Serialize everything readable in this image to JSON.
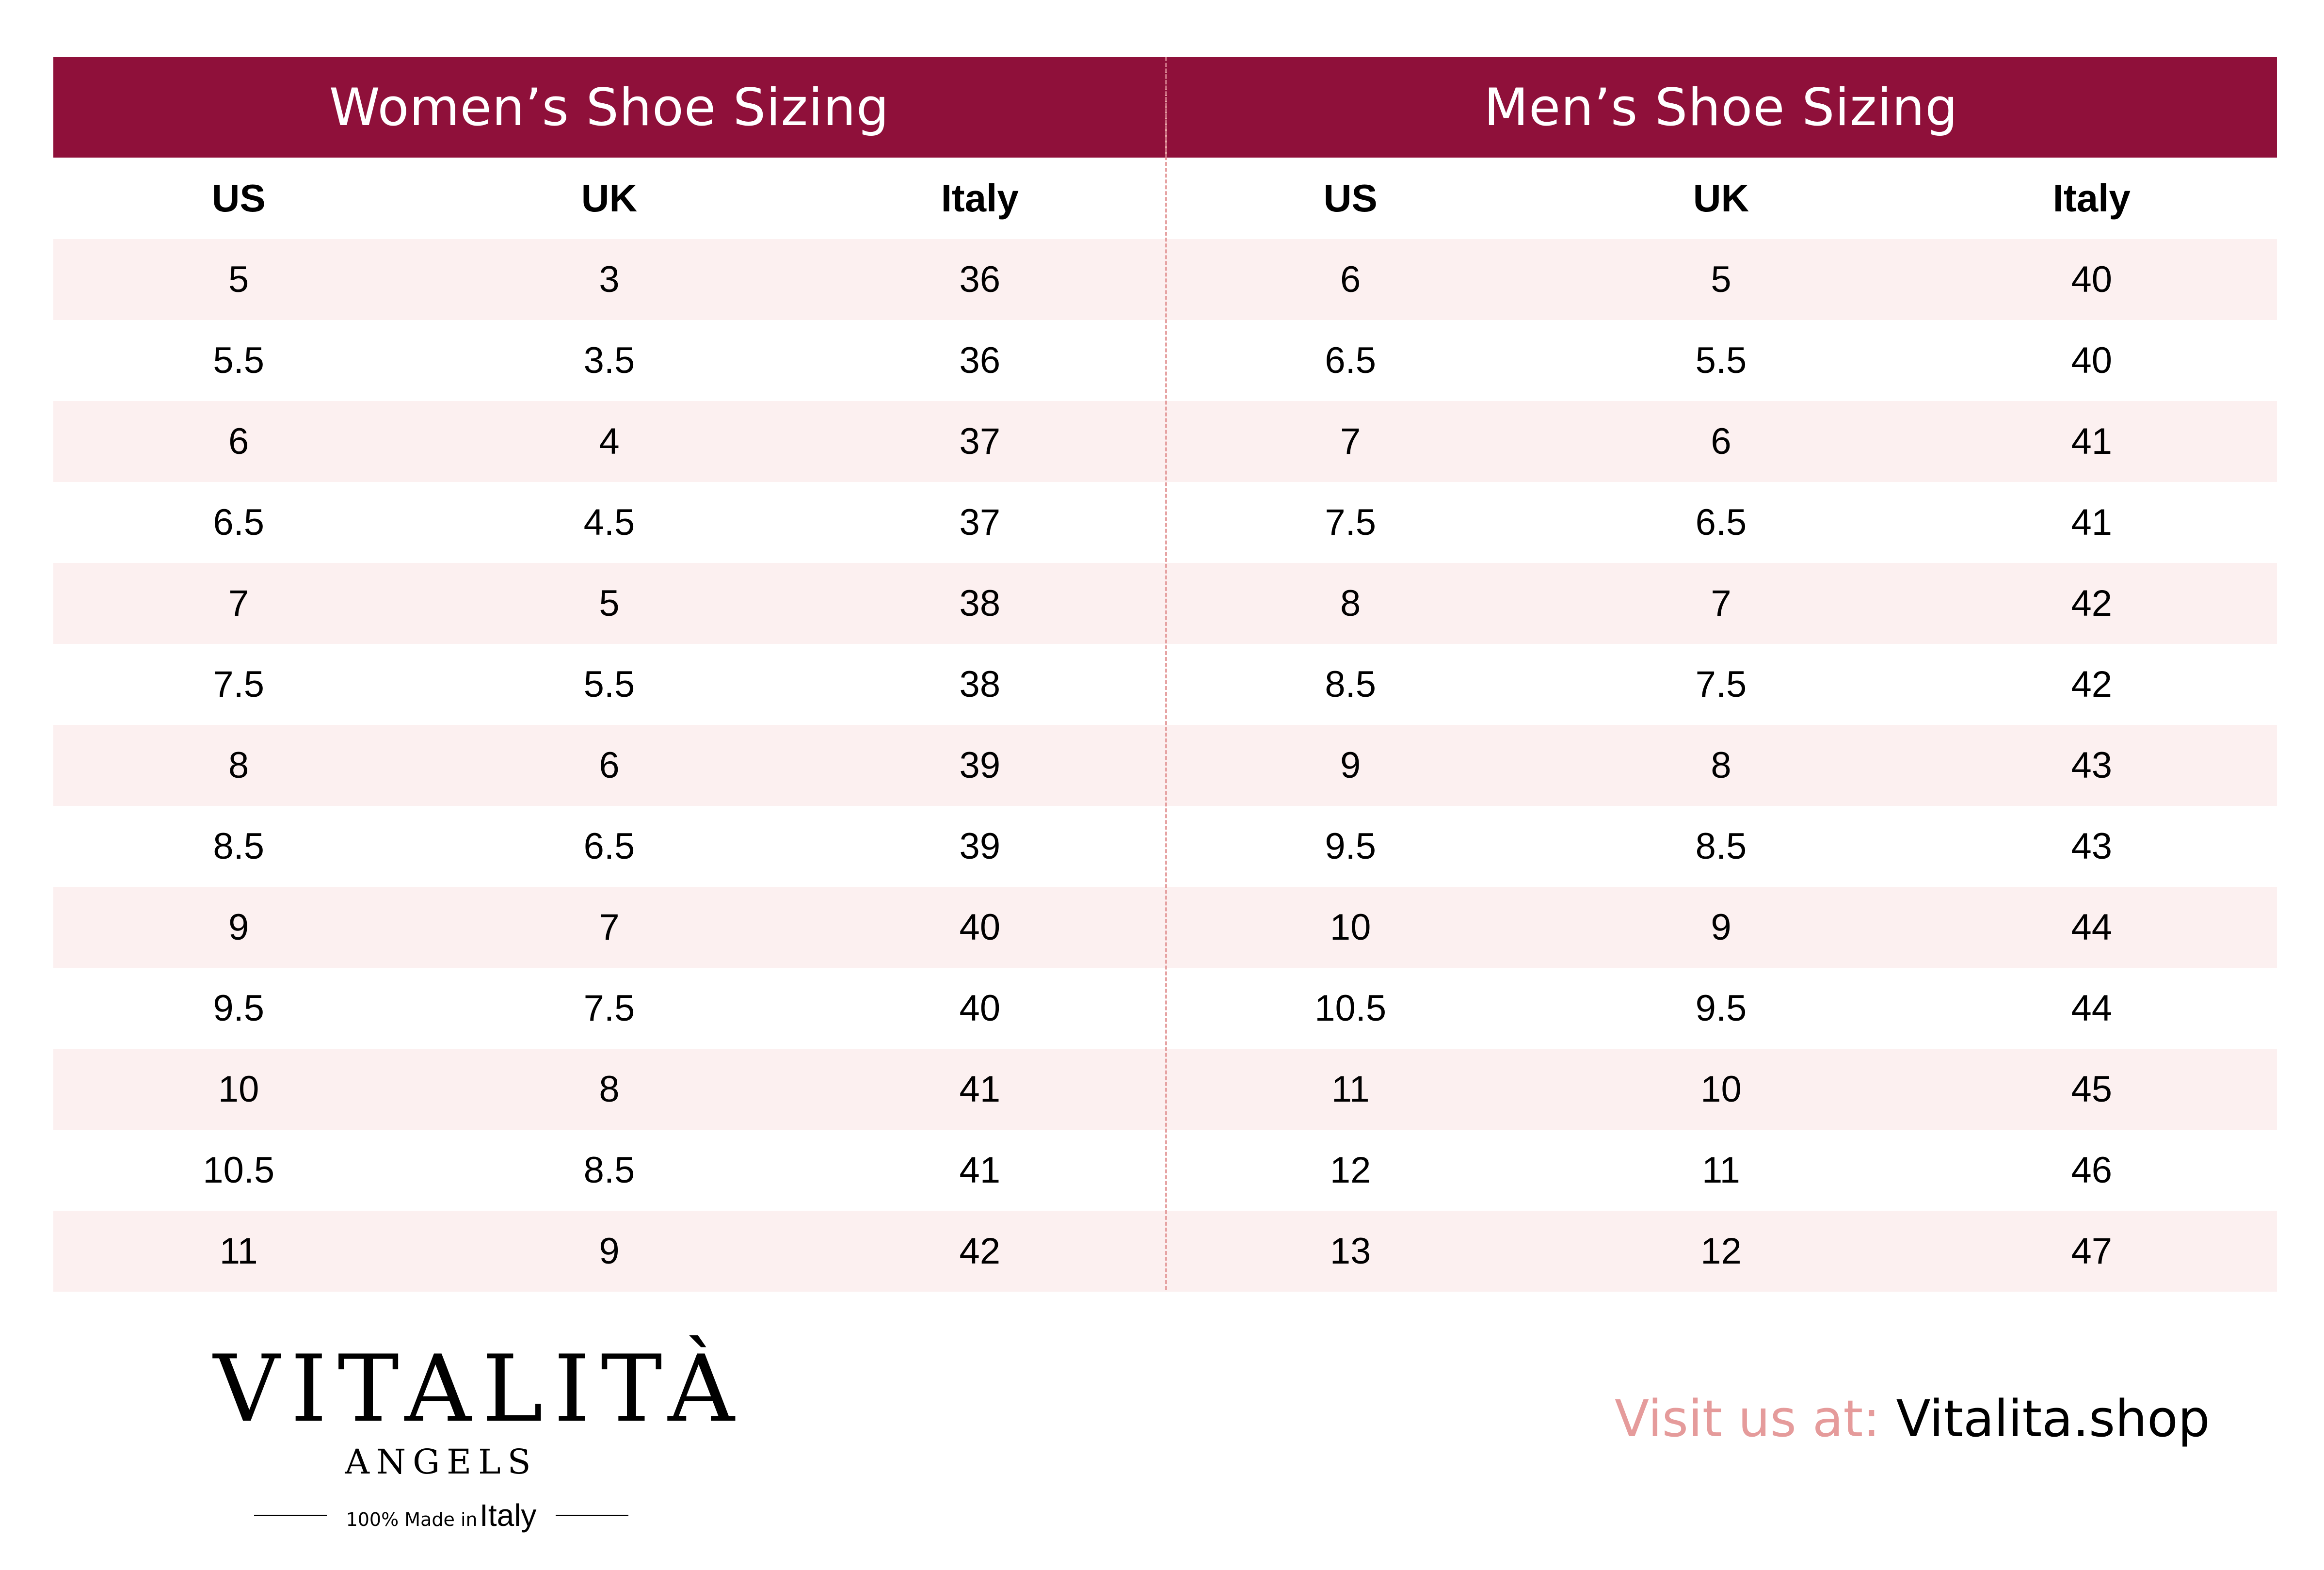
{
  "header": {
    "women_title": "Women’s Shoe Sizing",
    "men_title": "Men’s Shoe Sizing",
    "band_color": "#8f103a"
  },
  "columns": {
    "women": [
      "US",
      "UK",
      "Italy"
    ],
    "men": [
      "US",
      "UK",
      "Italy"
    ]
  },
  "rows": [
    {
      "w": [
        "5",
        "3",
        "36"
      ],
      "m": [
        "6",
        "5",
        "40"
      ]
    },
    {
      "w": [
        "5.5",
        "3.5",
        "36"
      ],
      "m": [
        "6.5",
        "5.5",
        "40"
      ]
    },
    {
      "w": [
        "6",
        "4",
        "37"
      ],
      "m": [
        "7",
        "6",
        "41"
      ]
    },
    {
      "w": [
        "6.5",
        "4.5",
        "37"
      ],
      "m": [
        "7.5",
        "6.5",
        "41"
      ]
    },
    {
      "w": [
        "7",
        "5",
        "38"
      ],
      "m": [
        "8",
        "7",
        "42"
      ]
    },
    {
      "w": [
        "7.5",
        "5.5",
        "38"
      ],
      "m": [
        "8.5",
        "7.5",
        "42"
      ]
    },
    {
      "w": [
        "8",
        "6",
        "39"
      ],
      "m": [
        "9",
        "8",
        "43"
      ]
    },
    {
      "w": [
        "8.5",
        "6.5",
        "39"
      ],
      "m": [
        "9.5",
        "8.5",
        "43"
      ]
    },
    {
      "w": [
        "9",
        "7",
        "40"
      ],
      "m": [
        "10",
        "9",
        "44"
      ]
    },
    {
      "w": [
        "9.5",
        "7.5",
        "40"
      ],
      "m": [
        "10.5",
        "9.5",
        "44"
      ]
    },
    {
      "w": [
        "10",
        "8",
        "41"
      ],
      "m": [
        "11",
        "10",
        "45"
      ]
    },
    {
      "w": [
        "10.5",
        "8.5",
        "41"
      ],
      "m": [
        "12",
        "11",
        "46"
      ]
    },
    {
      "w": [
        "11",
        "9",
        "42"
      ],
      "m": [
        "13",
        "12",
        "47"
      ]
    }
  ],
  "logo": {
    "brand": "VITALITÀ",
    "sub": "ANGELS",
    "tag_prefix": "100% Made in",
    "tag_country": "Italy"
  },
  "visit": {
    "label": "Visit us at: ",
    "url": "Vitalita.shop",
    "label_color": "#e59b9b"
  }
}
